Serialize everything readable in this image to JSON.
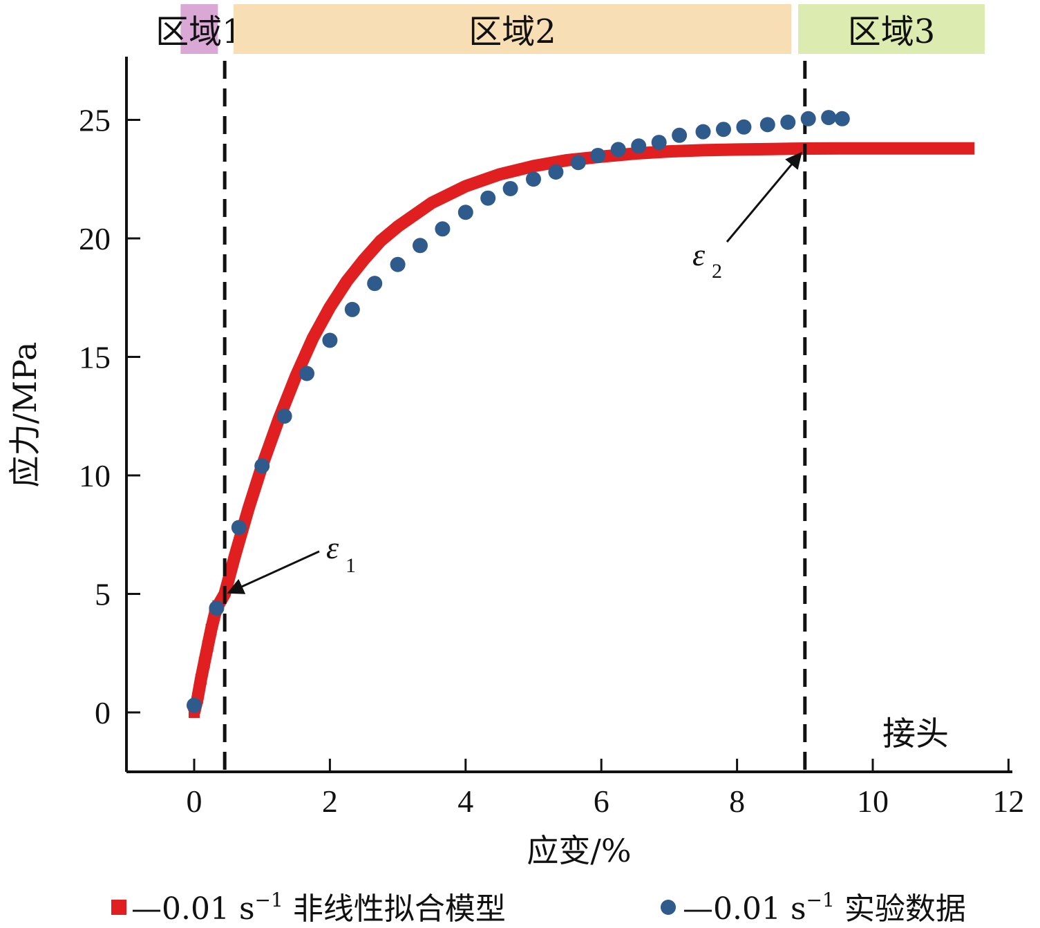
{
  "chart_data": {
    "type": "scatter",
    "xlabel": "应变/%",
    "ylabel": "应力/MPa",
    "xlim": [
      -1,
      12
    ],
    "ylim": [
      -2.5,
      27.5
    ],
    "x_ticks": [
      "0",
      "2",
      "4",
      "6",
      "8",
      "10",
      "12"
    ],
    "y_ticks": [
      "0",
      "5",
      "10",
      "15",
      "20",
      "25"
    ],
    "grid": false,
    "regions": [
      {
        "label": "区域1",
        "x_start": -0.2,
        "x_end": 0.35,
        "color": "#d9a8d4"
      },
      {
        "label": "区域2",
        "x_start": 0.58,
        "x_end": 8.8,
        "color": "#f8deb4"
      },
      {
        "label": "区域3",
        "x_start": 8.9,
        "x_end": 11.65,
        "color": "#dcebb0"
      }
    ],
    "vlines": [
      0.45,
      9.0
    ],
    "annotations": [
      {
        "symbol": "ε",
        "sub": "1",
        "x": 0.45,
        "y": 5.0
      },
      {
        "symbol": "ε",
        "sub": "2",
        "x": 9.0,
        "y": 23.7
      }
    ],
    "corner_label": "接头",
    "series": [
      {
        "name": "0.01 s⁻¹ 非线性拟合模型",
        "marker": "square",
        "color": "#e02020",
        "x": [
          0,
          0.05,
          0.1,
          0.15,
          0.2,
          0.25,
          0.3,
          0.35,
          0.45,
          0.6,
          0.8,
          1.0,
          1.25,
          1.5,
          1.75,
          2.0,
          2.25,
          2.5,
          2.75,
          3.0,
          3.5,
          4.0,
          4.5,
          5.0,
          5.5,
          6.0,
          6.5,
          7.0,
          7.5,
          8.0,
          8.5,
          9.0,
          9.5,
          10.0,
          10.5,
          11.0,
          11.5
        ],
        "y": [
          0,
          0.6,
          1.4,
          2.1,
          2.8,
          3.5,
          4.1,
          4.5,
          5.0,
          6.6,
          8.6,
          10.4,
          12.4,
          14.2,
          15.8,
          17.1,
          18.2,
          19.1,
          19.9,
          20.5,
          21.5,
          22.2,
          22.7,
          23.05,
          23.3,
          23.45,
          23.58,
          23.67,
          23.72,
          23.75,
          23.77,
          23.79,
          23.8,
          23.8,
          23.8,
          23.8,
          23.8
        ]
      },
      {
        "name": "0.01 s⁻¹ 实验数据",
        "marker": "circle",
        "color": "#2e5a8c",
        "x": [
          0.0,
          0.33,
          0.66,
          1.0,
          1.33,
          1.66,
          2.0,
          2.33,
          2.66,
          3.0,
          3.33,
          3.66,
          4.0,
          4.33,
          4.66,
          5.0,
          5.33,
          5.66,
          5.95,
          6.25,
          6.55,
          6.85,
          7.15,
          7.5,
          7.8,
          8.1,
          8.45,
          8.75,
          9.05,
          9.35,
          9.55
        ],
        "y": [
          0.3,
          4.4,
          7.8,
          10.4,
          12.5,
          14.3,
          15.7,
          17.0,
          18.1,
          18.9,
          19.7,
          20.4,
          21.1,
          21.7,
          22.1,
          22.5,
          22.8,
          23.2,
          23.5,
          23.75,
          23.9,
          24.05,
          24.35,
          24.5,
          24.6,
          24.7,
          24.8,
          24.9,
          25.05,
          25.1,
          25.05
        ]
      }
    ]
  },
  "legend": {
    "items": [
      {
        "dash": "—",
        "rate": "0.01 s",
        "sup": "−1",
        "label": "非线性拟合模型"
      },
      {
        "dash": "—",
        "rate": "0.01 s",
        "sup": "−1",
        "label": "实验数据"
      }
    ]
  }
}
